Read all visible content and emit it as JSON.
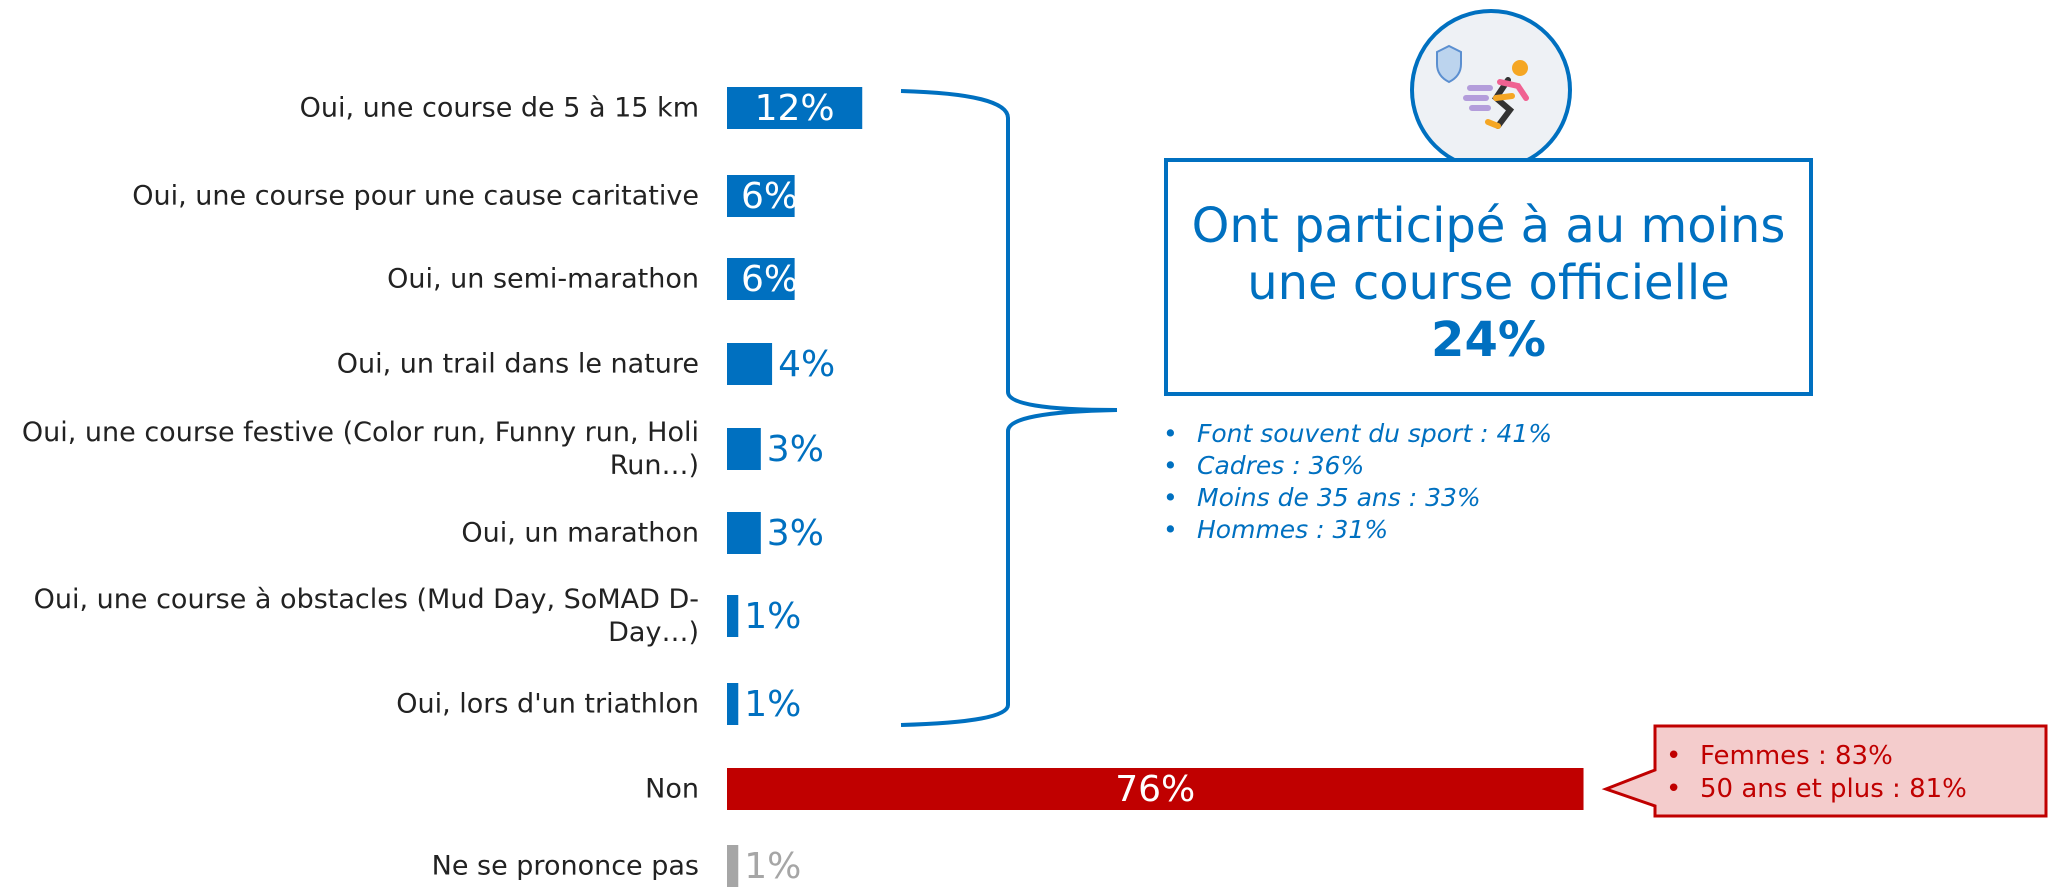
{
  "chart_data": {
    "type": "hbar",
    "categories": [
      "Oui, une course de 5 à 15 km",
      "Oui, une course pour une cause caritative",
      "Oui, un semi-marathon",
      "Oui, un trail dans le nature",
      "Oui, une course festive (Color run, Funny run, Holi Run…)",
      "Oui, un marathon",
      "Oui, une course à obstacles (Mud Day, SoMAD D-Day…)",
      "Oui, lors d'un triathlon",
      "Non",
      "Ne se prononce pas"
    ],
    "values": [
      12,
      6,
      6,
      4,
      3,
      3,
      1,
      1,
      76,
      1
    ],
    "value_labels": [
      "12%",
      "6%",
      "6%",
      "4%",
      "3%",
      "3%",
      "1%",
      "1%",
      "76%",
      "1%"
    ],
    "colors": [
      "#0070c0",
      "#0070c0",
      "#0070c0",
      "#0070c0",
      "#0070c0",
      "#0070c0",
      "#0070c0",
      "#0070c0",
      "#c00000",
      "#a6a6a6"
    ],
    "summary": {
      "title": "Ont participé à au moins une course officielle",
      "value": "24%",
      "bullets": [
        "Font souvent du sport : 41%",
        "Cadres : 36%",
        "Moins de 35 ans : 33%",
        "Hommes : 31%"
      ]
    },
    "non_callout": {
      "bullets": [
        "Femmes : 83%",
        "50 ans et plus : 81%"
      ]
    }
  }
}
